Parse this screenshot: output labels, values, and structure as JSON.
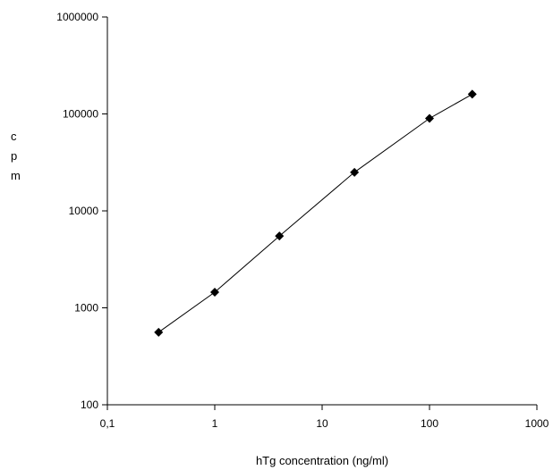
{
  "chart_data": {
    "type": "scatter",
    "title": "",
    "xlabel": "hTg concentration (ng/ml)",
    "ylabel_letters": [
      "c",
      "p",
      "m"
    ],
    "x_scale": "log",
    "y_scale": "log",
    "xlim": [
      0.1,
      1000
    ],
    "ylim": [
      100,
      1000000
    ],
    "x_tick_values": [
      0.1,
      1,
      10,
      100,
      1000
    ],
    "x_tick_labels": [
      "0,1",
      "1",
      "10",
      "100",
      "1000"
    ],
    "y_tick_values": [
      100,
      1000,
      10000,
      100000,
      1000000
    ],
    "y_tick_labels": [
      "100",
      "1000",
      "10000",
      "100000",
      "1000000"
    ],
    "grid": false,
    "legend": "none",
    "series": [
      {
        "marker": "diamond",
        "line": true,
        "color": "#000000",
        "x": [
          0.3,
          1,
          4,
          20,
          100,
          250
        ],
        "y": [
          560,
          1450,
          5500,
          25000,
          90000,
          160000
        ]
      }
    ]
  }
}
